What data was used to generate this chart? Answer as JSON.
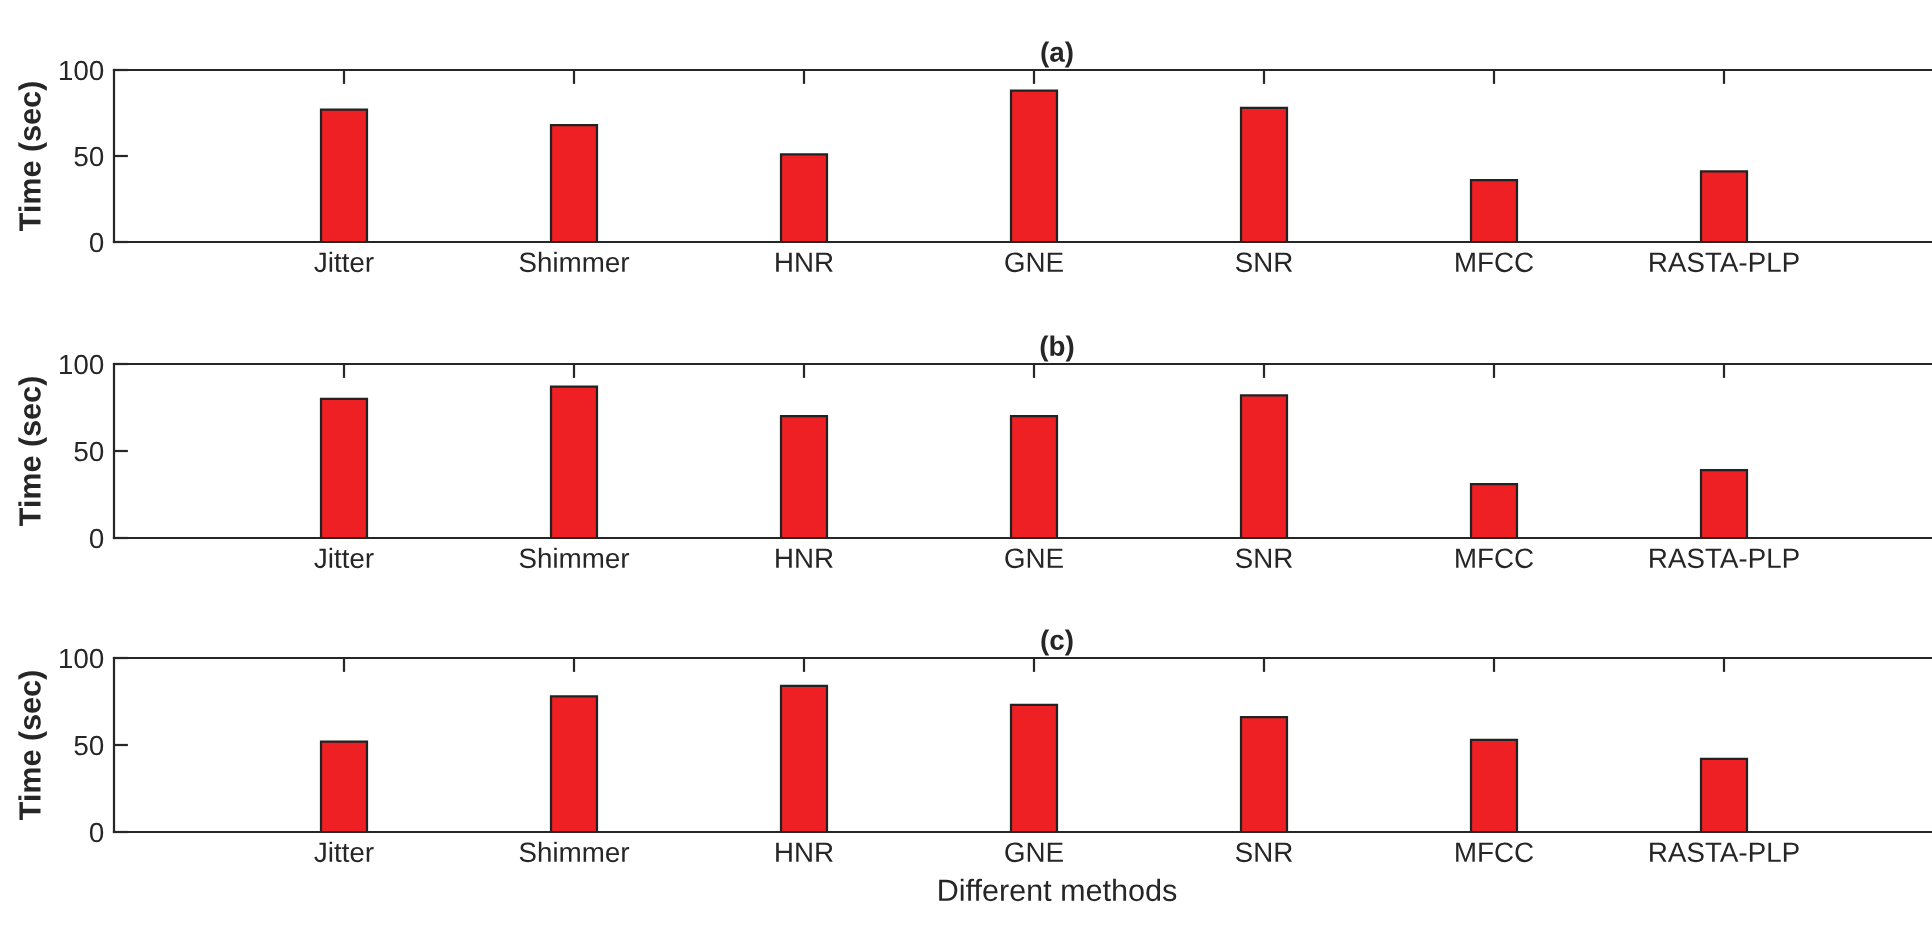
{
  "chart_data": [
    {
      "type": "bar",
      "title": "(a)",
      "ylabel": "Time (sec)",
      "categories": [
        "Jitter",
        "Shimmer",
        "HNR",
        "GNE",
        "SNR",
        "MFCC",
        "RASTA-PLP"
      ],
      "values": [
        77,
        68,
        51,
        88,
        78,
        36,
        41
      ],
      "color": "#ee2024",
      "ylim": [
        0,
        100
      ],
      "yticks": [
        0,
        50,
        100
      ],
      "grid": false,
      "legend": false
    },
    {
      "type": "bar",
      "title": "(b)",
      "ylabel": "Time (sec)",
      "categories": [
        "Jitter",
        "Shimmer",
        "HNR",
        "GNE",
        "SNR",
        "MFCC",
        "RASTA-PLP"
      ],
      "values": [
        80,
        87,
        70,
        70,
        82,
        31,
        39
      ],
      "color": "#ee2024",
      "ylim": [
        0,
        100
      ],
      "yticks": [
        0,
        50,
        100
      ],
      "grid": false,
      "legend": false
    },
    {
      "type": "bar",
      "title": "(c)",
      "ylabel": "Time (sec)",
      "xlabel": "Different methods",
      "categories": [
        "Jitter",
        "Shimmer",
        "HNR",
        "GNE",
        "SNR",
        "MFCC",
        "RASTA-PLP"
      ],
      "values": [
        52,
        78,
        84,
        73,
        66,
        53,
        42
      ],
      "color": "#ee2024",
      "ylim": [
        0,
        100
      ],
      "yticks": [
        0,
        50,
        100
      ],
      "grid": false,
      "legend": false
    }
  ]
}
